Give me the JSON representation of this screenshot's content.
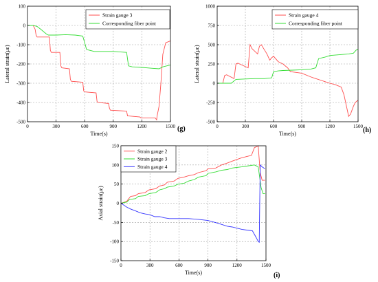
{
  "chart_data": [
    {
      "type": "line",
      "panel_label": "(g)",
      "xlabel": "Time(s)",
      "ylabel": "Lateral strain(με)",
      "xlim": [
        0,
        1500
      ],
      "ylim": [
        -500,
        100
      ],
      "xticks": [
        0,
        300,
        600,
        900,
        1200,
        1500
      ],
      "yticks": [
        100,
        0,
        -100,
        -200,
        -300,
        -400,
        -500
      ],
      "grid": true,
      "legend_position": "top-center",
      "series": [
        {
          "name": "Strain gauge 3",
          "color": "#ff4d4d",
          "points": [
            [
              0,
              0
            ],
            [
              60,
              0
            ],
            [
              80,
              -20
            ],
            [
              90,
              -50
            ],
            [
              100,
              -60
            ],
            [
              230,
              -60
            ],
            [
              240,
              -130
            ],
            [
              250,
              -140
            ],
            [
              340,
              -140
            ],
            [
              350,
              -210
            ],
            [
              360,
              -220
            ],
            [
              440,
              -225
            ],
            [
              450,
              -280
            ],
            [
              460,
              -290
            ],
            [
              580,
              -295
            ],
            [
              590,
              -340
            ],
            [
              600,
              -345
            ],
            [
              720,
              -350
            ],
            [
              730,
              -395
            ],
            [
              740,
              -400
            ],
            [
              850,
              -405
            ],
            [
              860,
              -430
            ],
            [
              870,
              -440
            ],
            [
              1040,
              -445
            ],
            [
              1050,
              -470
            ],
            [
              1060,
              -470
            ],
            [
              1180,
              -475
            ],
            [
              1190,
              -480
            ],
            [
              1340,
              -480
            ],
            [
              1355,
              -490
            ],
            [
              1360,
              -470
            ],
            [
              1380,
              -420
            ],
            [
              1400,
              -300
            ],
            [
              1420,
              -150
            ],
            [
              1450,
              -90
            ],
            [
              1500,
              -80
            ]
          ]
        },
        {
          "name": "Corresponding fiber point",
          "color": "#33dd33",
          "points": [
            [
              0,
              0
            ],
            [
              60,
              0
            ],
            [
              100,
              -5
            ],
            [
              140,
              -20
            ],
            [
              200,
              -45
            ],
            [
              220,
              -50
            ],
            [
              300,
              -50
            ],
            [
              400,
              -48
            ],
            [
              500,
              -50
            ],
            [
              580,
              -55
            ],
            [
              600,
              -90
            ],
            [
              620,
              -125
            ],
            [
              700,
              -135
            ],
            [
              800,
              -135
            ],
            [
              900,
              -135
            ],
            [
              1040,
              -140
            ],
            [
              1060,
              -210
            ],
            [
              1100,
              -215
            ],
            [
              1200,
              -218
            ],
            [
              1300,
              -222
            ],
            [
              1380,
              -225
            ],
            [
              1420,
              -215
            ],
            [
              1460,
              -210
            ],
            [
              1500,
              -205
            ]
          ]
        }
      ]
    },
    {
      "type": "line",
      "panel_label": "(h)",
      "xlabel": "Time(s)",
      "ylabel": "Lateral strain(με)",
      "xlim": [
        0,
        1500
      ],
      "ylim": [
        -500,
        1000
      ],
      "xticks": [
        0,
        300,
        600,
        900,
        1200,
        1500
      ],
      "yticks": [
        1000,
        750,
        500,
        250,
        0,
        -250,
        -500
      ],
      "grid": true,
      "legend_position": "top-center",
      "series": [
        {
          "name": "Strain gauge 4",
          "color": "#ff4d4d",
          "points": [
            [
              0,
              0
            ],
            [
              60,
              0
            ],
            [
              80,
              100
            ],
            [
              100,
              110
            ],
            [
              180,
              60
            ],
            [
              200,
              250
            ],
            [
              220,
              260
            ],
            [
              330,
              200
            ],
            [
              350,
              500
            ],
            [
              370,
              450
            ],
            [
              430,
              380
            ],
            [
              450,
              480
            ],
            [
              470,
              500
            ],
            [
              530,
              380
            ],
            [
              560,
              300
            ],
            [
              580,
              330
            ],
            [
              600,
              350
            ],
            [
              650,
              280
            ],
            [
              700,
              250
            ],
            [
              750,
              200
            ],
            [
              780,
              150
            ],
            [
              900,
              130
            ],
            [
              1000,
              80
            ],
            [
              1050,
              60
            ],
            [
              1100,
              40
            ],
            [
              1150,
              20
            ],
            [
              1200,
              0
            ],
            [
              1260,
              -20
            ],
            [
              1320,
              -50
            ],
            [
              1350,
              -150
            ],
            [
              1400,
              -430
            ],
            [
              1420,
              -400
            ],
            [
              1450,
              -300
            ],
            [
              1470,
              -250
            ],
            [
              1500,
              -220
            ]
          ]
        },
        {
          "name": "Corresponding fiber point",
          "color": "#33dd33",
          "points": [
            [
              0,
              0
            ],
            [
              150,
              0
            ],
            [
              200,
              50
            ],
            [
              300,
              55
            ],
            [
              400,
              60
            ],
            [
              500,
              60
            ],
            [
              580,
              70
            ],
            [
              600,
              150
            ],
            [
              650,
              160
            ],
            [
              700,
              165
            ],
            [
              800,
              170
            ],
            [
              900,
              175
            ],
            [
              1000,
              185
            ],
            [
              1050,
              200
            ],
            [
              1080,
              320
            ],
            [
              1150,
              340
            ],
            [
              1200,
              360
            ],
            [
              1300,
              370
            ],
            [
              1400,
              380
            ],
            [
              1450,
              390
            ],
            [
              1480,
              430
            ],
            [
              1500,
              440
            ]
          ]
        }
      ]
    },
    {
      "type": "line",
      "panel_label": "(i)",
      "xlabel": "Time(s)",
      "ylabel": "Axial strain(με)",
      "xlim": [
        0,
        1500
      ],
      "ylim": [
        -150,
        150
      ],
      "xticks": [
        0,
        300,
        600,
        900,
        1200,
        1500
      ],
      "yticks": [
        150,
        100,
        50,
        0,
        -50,
        -100,
        -150
      ],
      "grid": true,
      "legend_position": "top-left",
      "series": [
        {
          "name": "Strain gauge 2",
          "color": "#ff4d4d",
          "points": [
            [
              0,
              0
            ],
            [
              60,
              5
            ],
            [
              90,
              15
            ],
            [
              100,
              18
            ],
            [
              150,
              20
            ],
            [
              180,
              25
            ],
            [
              250,
              28
            ],
            [
              290,
              35
            ],
            [
              360,
              38
            ],
            [
              400,
              45
            ],
            [
              450,
              48
            ],
            [
              480,
              55
            ],
            [
              550,
              58
            ],
            [
              590,
              65
            ],
            [
              650,
              68
            ],
            [
              700,
              72
            ],
            [
              760,
              75
            ],
            [
              800,
              80
            ],
            [
              880,
              85
            ],
            [
              900,
              90
            ],
            [
              980,
              92
            ],
            [
              1040,
              100
            ],
            [
              1100,
              105
            ],
            [
              1150,
              110
            ],
            [
              1240,
              118
            ],
            [
              1300,
              122
            ],
            [
              1350,
              125
            ],
            [
              1380,
              145
            ],
            [
              1420,
              150
            ],
            [
              1440,
              80
            ],
            [
              1460,
              60
            ],
            [
              1490,
              60
            ]
          ]
        },
        {
          "name": "Strain gauge 3",
          "color": "#33dd33",
          "points": [
            [
              0,
              0
            ],
            [
              60,
              3
            ],
            [
              90,
              10
            ],
            [
              150,
              12
            ],
            [
              180,
              18
            ],
            [
              250,
              20
            ],
            [
              290,
              25
            ],
            [
              360,
              28
            ],
            [
              400,
              35
            ],
            [
              450,
              38
            ],
            [
              480,
              42
            ],
            [
              550,
              45
            ],
            [
              590,
              50
            ],
            [
              650,
              52
            ],
            [
              700,
              58
            ],
            [
              760,
              62
            ],
            [
              800,
              68
            ],
            [
              880,
              72
            ],
            [
              900,
              78
            ],
            [
              980,
              82
            ],
            [
              1040,
              86
            ],
            [
              1100,
              88
            ],
            [
              1150,
              92
            ],
            [
              1250,
              95
            ],
            [
              1300,
              97
            ],
            [
              1380,
              100
            ],
            [
              1420,
              95
            ],
            [
              1450,
              40
            ],
            [
              1470,
              25
            ],
            [
              1490,
              25
            ]
          ]
        },
        {
          "name": "Strain gauge 4",
          "color": "#3333ff",
          "points": [
            [
              0,
              0
            ],
            [
              30,
              -5
            ],
            [
              60,
              -10
            ],
            [
              100,
              -15
            ],
            [
              150,
              -20
            ],
            [
              200,
              -25
            ],
            [
              250,
              -28
            ],
            [
              300,
              -30
            ],
            [
              350,
              -35
            ],
            [
              400,
              -35
            ],
            [
              450,
              -38
            ],
            [
              500,
              -40
            ],
            [
              550,
              -40
            ],
            [
              600,
              -40
            ],
            [
              700,
              -40
            ],
            [
              800,
              -42
            ],
            [
              900,
              -45
            ],
            [
              1000,
              -52
            ],
            [
              1100,
              -60
            ],
            [
              1150,
              -62
            ],
            [
              1200,
              -65
            ],
            [
              1250,
              -68
            ],
            [
              1300,
              -70
            ],
            [
              1360,
              -72
            ],
            [
              1400,
              -90
            ],
            [
              1420,
              -100
            ],
            [
              1430,
              -102
            ],
            [
              1440,
              100
            ],
            [
              1460,
              95
            ],
            [
              1490,
              90
            ]
          ]
        }
      ]
    }
  ]
}
